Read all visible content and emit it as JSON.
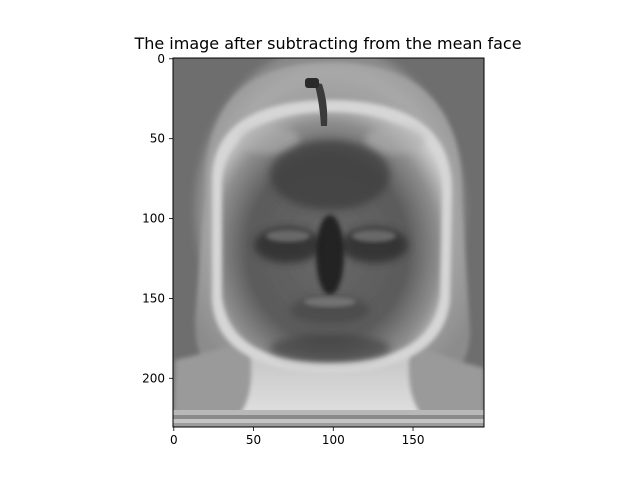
{
  "chart_data": {
    "type": "heatmap",
    "title": "The image after subtracting from the mean face",
    "xlabel": "",
    "ylabel": "",
    "colormap": "gray",
    "image_size": {
      "width": 195,
      "height": 231
    },
    "xlim": [
      -0.5,
      194.5
    ],
    "ylim": [
      230.5,
      -0.5
    ],
    "x_ticks": [
      0,
      50,
      100,
      150
    ],
    "y_ticks": [
      0,
      50,
      100,
      150,
      200
    ],
    "grid": false,
    "content": "Grayscale image: an apple with stem overlaid on a blurred mean face (dark eyes, nose, mouth) with light hair and neck regions"
  }
}
